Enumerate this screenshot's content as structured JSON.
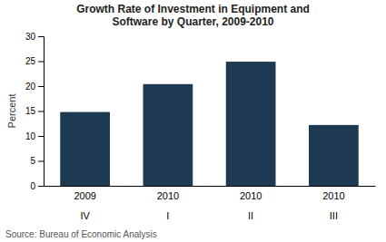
{
  "chart_data": {
    "type": "bar",
    "title": "Growth Rate of Investment in Equipment and\nSoftware by Quarter, 2009-2010",
    "y_label": "Percent",
    "source": "Source: Bureau of Economic Analysis",
    "categories": [
      "2009\n\nIV",
      "2010\n\nI",
      "2010\n\nII",
      "2010\n\nIII"
    ],
    "values": [
      14.8,
      20.4,
      24.9,
      12.2
    ],
    "color": "#1e3a52",
    "ylim": [
      0,
      30
    ],
    "yticks": [
      0,
      5,
      10,
      15,
      20,
      25,
      30
    ],
    "grid": false
  }
}
